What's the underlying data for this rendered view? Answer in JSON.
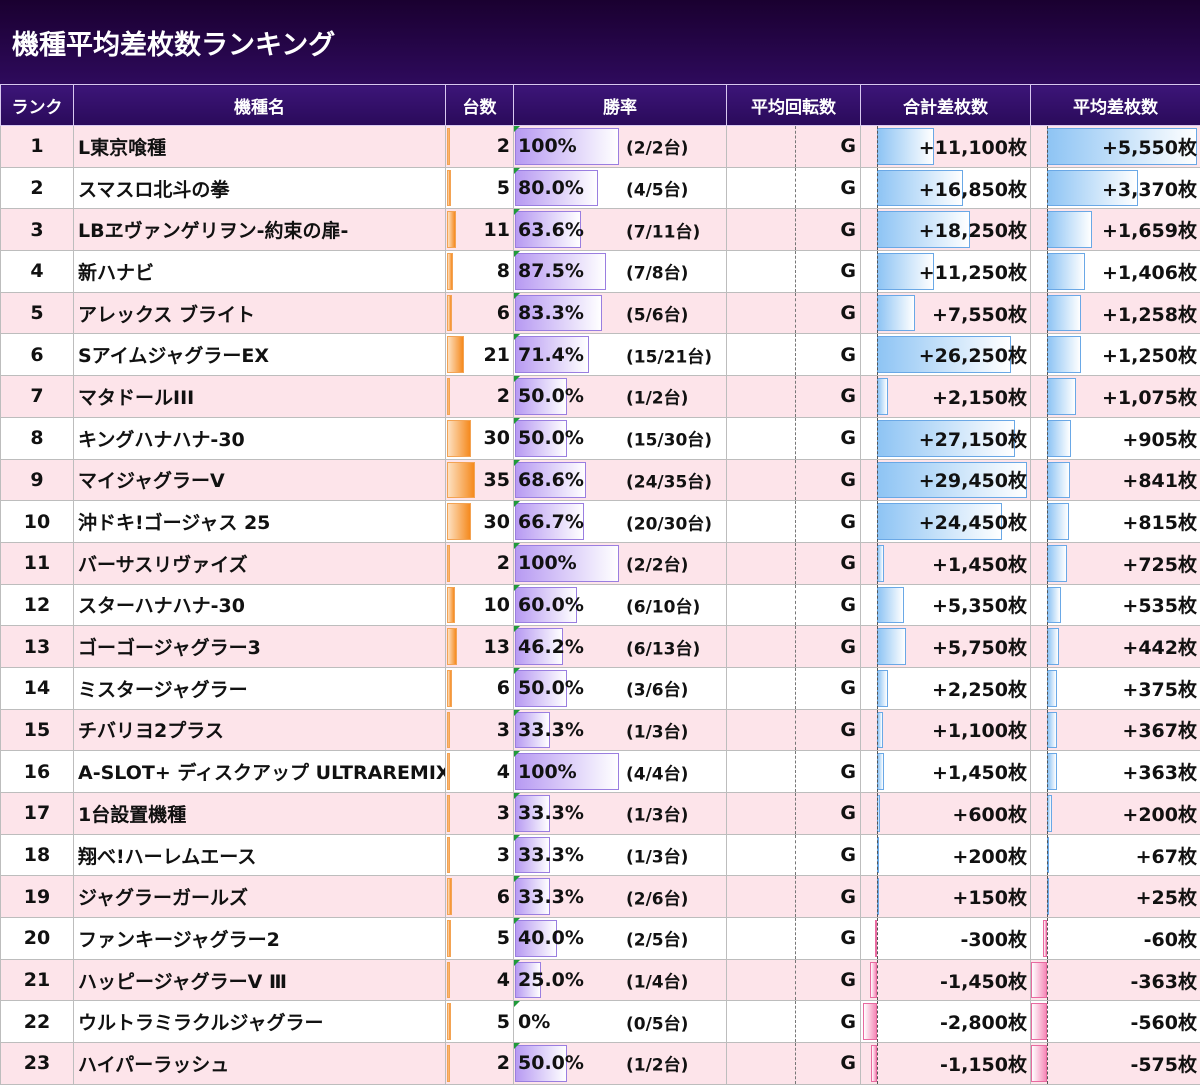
{
  "title": "機種平均差枚数ランキング",
  "headers": {
    "rank": "ランク",
    "name": "機種名",
    "units": "台数",
    "winrate": "勝率",
    "avg_spins": "平均回転数",
    "total_diff": "合計差枚数",
    "avg_diff": "平均差枚数"
  },
  "colors": {
    "header_bg": "#2a0a5a",
    "odd_row": "#fde4ea",
    "even_row": "#ffffff",
    "units_bar": "#f58a1f",
    "winrate_bar": "#b79af2",
    "positive_bar": "#8ec4f4",
    "negative_bar": "#f58ab8"
  },
  "rows": [
    {
      "rank": "1",
      "name": "L東京喰種",
      "units": 2,
      "units_text": "2",
      "winrate": 100,
      "winrate_text": "100%",
      "ratio_text": "(2/2台)",
      "spins_text": "G",
      "total": 11100,
      "total_text": "+11,100枚",
      "avg": 5550,
      "avg_text": "+5,550枚"
    },
    {
      "rank": "2",
      "name": "スマスロ北斗の拳",
      "units": 5,
      "units_text": "5",
      "winrate": 80.0,
      "winrate_text": "80.0%",
      "ratio_text": "(4/5台)",
      "spins_text": "G",
      "total": 16850,
      "total_text": "+16,850枚",
      "avg": 3370,
      "avg_text": "+3,370枚"
    },
    {
      "rank": "3",
      "name": "LBヱヴァンゲリヲン-約束の扉-",
      "units": 11,
      "units_text": "11",
      "winrate": 63.6,
      "winrate_text": "63.6%",
      "ratio_text": "(7/11台)",
      "spins_text": "G",
      "total": 18250,
      "total_text": "+18,250枚",
      "avg": 1659,
      "avg_text": "+1,659枚"
    },
    {
      "rank": "4",
      "name": "新ハナビ",
      "units": 8,
      "units_text": "8",
      "winrate": 87.5,
      "winrate_text": "87.5%",
      "ratio_text": "(7/8台)",
      "spins_text": "G",
      "total": 11250,
      "total_text": "+11,250枚",
      "avg": 1406,
      "avg_text": "+1,406枚"
    },
    {
      "rank": "5",
      "name": "アレックス ブライト",
      "units": 6,
      "units_text": "6",
      "winrate": 83.3,
      "winrate_text": "83.3%",
      "ratio_text": "(5/6台)",
      "spins_text": "G",
      "total": 7550,
      "total_text": "+7,550枚",
      "avg": 1258,
      "avg_text": "+1,258枚"
    },
    {
      "rank": "6",
      "name": "SアイムジャグラーEX",
      "units": 21,
      "units_text": "21",
      "winrate": 71.4,
      "winrate_text": "71.4%",
      "ratio_text": "(15/21台)",
      "spins_text": "G",
      "total": 26250,
      "total_text": "+26,250枚",
      "avg": 1250,
      "avg_text": "+1,250枚"
    },
    {
      "rank": "7",
      "name": "マタドールIII",
      "units": 2,
      "units_text": "2",
      "winrate": 50.0,
      "winrate_text": "50.0%",
      "ratio_text": "(1/2台)",
      "spins_text": "G",
      "total": 2150,
      "total_text": "+2,150枚",
      "avg": 1075,
      "avg_text": "+1,075枚"
    },
    {
      "rank": "8",
      "name": "キングハナハナ-30",
      "units": 30,
      "units_text": "30",
      "winrate": 50.0,
      "winrate_text": "50.0%",
      "ratio_text": "(15/30台)",
      "spins_text": "G",
      "total": 27150,
      "total_text": "+27,150枚",
      "avg": 905,
      "avg_text": "+905枚"
    },
    {
      "rank": "9",
      "name": "マイジャグラーV",
      "units": 35,
      "units_text": "35",
      "winrate": 68.6,
      "winrate_text": "68.6%",
      "ratio_text": "(24/35台)",
      "spins_text": "G",
      "total": 29450,
      "total_text": "+29,450枚",
      "avg": 841,
      "avg_text": "+841枚"
    },
    {
      "rank": "10",
      "name": "沖ドキ!ゴージャス 25",
      "units": 30,
      "units_text": "30",
      "winrate": 66.7,
      "winrate_text": "66.7%",
      "ratio_text": "(20/30台)",
      "spins_text": "G",
      "total": 24450,
      "total_text": "+24,450枚",
      "avg": 815,
      "avg_text": "+815枚"
    },
    {
      "rank": "11",
      "name": "バーサスリヴァイズ",
      "units": 2,
      "units_text": "2",
      "winrate": 100,
      "winrate_text": "100%",
      "ratio_text": "(2/2台)",
      "spins_text": "G",
      "total": 1450,
      "total_text": "+1,450枚",
      "avg": 725,
      "avg_text": "+725枚"
    },
    {
      "rank": "12",
      "name": "スターハナハナ-30",
      "units": 10,
      "units_text": "10",
      "winrate": 60.0,
      "winrate_text": "60.0%",
      "ratio_text": "(6/10台)",
      "spins_text": "G",
      "total": 5350,
      "total_text": "+5,350枚",
      "avg": 535,
      "avg_text": "+535枚"
    },
    {
      "rank": "13",
      "name": "ゴーゴージャグラー3",
      "units": 13,
      "units_text": "13",
      "winrate": 46.2,
      "winrate_text": "46.2%",
      "ratio_text": "(6/13台)",
      "spins_text": "G",
      "total": 5750,
      "total_text": "+5,750枚",
      "avg": 442,
      "avg_text": "+442枚"
    },
    {
      "rank": "14",
      "name": "ミスタージャグラー",
      "units": 6,
      "units_text": "6",
      "winrate": 50.0,
      "winrate_text": "50.0%",
      "ratio_text": "(3/6台)",
      "spins_text": "G",
      "total": 2250,
      "total_text": "+2,250枚",
      "avg": 375,
      "avg_text": "+375枚"
    },
    {
      "rank": "15",
      "name": "チバリヨ2プラス",
      "units": 3,
      "units_text": "3",
      "winrate": 33.3,
      "winrate_text": "33.3%",
      "ratio_text": "(1/3台)",
      "spins_text": "G",
      "total": 1100,
      "total_text": "+1,100枚",
      "avg": 367,
      "avg_text": "+367枚"
    },
    {
      "rank": "16",
      "name": "A-SLOT+ ディスクアップ ULTRAREMIX",
      "units": 4,
      "units_text": "4",
      "winrate": 100,
      "winrate_text": "100%",
      "ratio_text": "(4/4台)",
      "spins_text": "G",
      "total": 1450,
      "total_text": "+1,450枚",
      "avg": 363,
      "avg_text": "+363枚"
    },
    {
      "rank": "17",
      "name": "1台設置機種",
      "units": 3,
      "units_text": "3",
      "winrate": 33.3,
      "winrate_text": "33.3%",
      "ratio_text": "(1/3台)",
      "spins_text": "G",
      "total": 600,
      "total_text": "+600枚",
      "avg": 200,
      "avg_text": "+200枚"
    },
    {
      "rank": "18",
      "name": "翔べ!ハーレムエース",
      "units": 3,
      "units_text": "3",
      "winrate": 33.3,
      "winrate_text": "33.3%",
      "ratio_text": "(1/3台)",
      "spins_text": "G",
      "total": 200,
      "total_text": "+200枚",
      "avg": 67,
      "avg_text": "+67枚"
    },
    {
      "rank": "19",
      "name": "ジャグラーガールズ",
      "units": 6,
      "units_text": "6",
      "winrate": 33.3,
      "winrate_text": "33.3%",
      "ratio_text": "(2/6台)",
      "spins_text": "G",
      "total": 150,
      "total_text": "+150枚",
      "avg": 25,
      "avg_text": "+25枚"
    },
    {
      "rank": "20",
      "name": "ファンキージャグラー2",
      "units": 5,
      "units_text": "5",
      "winrate": 40.0,
      "winrate_text": "40.0%",
      "ratio_text": "(2/5台)",
      "spins_text": "G",
      "total": -300,
      "total_text": "-300枚",
      "avg": -60,
      "avg_text": "-60枚"
    },
    {
      "rank": "21",
      "name": "ハッピージャグラーV Ⅲ",
      "units": 4,
      "units_text": "4",
      "winrate": 25.0,
      "winrate_text": "25.0%",
      "ratio_text": "(1/4台)",
      "spins_text": "G",
      "total": -1450,
      "total_text": "-1,450枚",
      "avg": -363,
      "avg_text": "-363枚"
    },
    {
      "rank": "22",
      "name": "ウルトラミラクルジャグラー",
      "units": 5,
      "units_text": "5",
      "winrate": 0,
      "winrate_text": "0%",
      "ratio_text": "(0/5台)",
      "spins_text": "G",
      "total": -2800,
      "total_text": "-2,800枚",
      "avg": -560,
      "avg_text": "-560枚"
    },
    {
      "rank": "23",
      "name": "ハイパーラッシュ",
      "units": 2,
      "units_text": "2",
      "winrate": 50.0,
      "winrate_text": "50.0%",
      "ratio_text": "(1/2台)",
      "spins_text": "G",
      "total": -1150,
      "total_text": "-1,150枚",
      "avg": -575,
      "avg_text": "-575枚"
    }
  ]
}
